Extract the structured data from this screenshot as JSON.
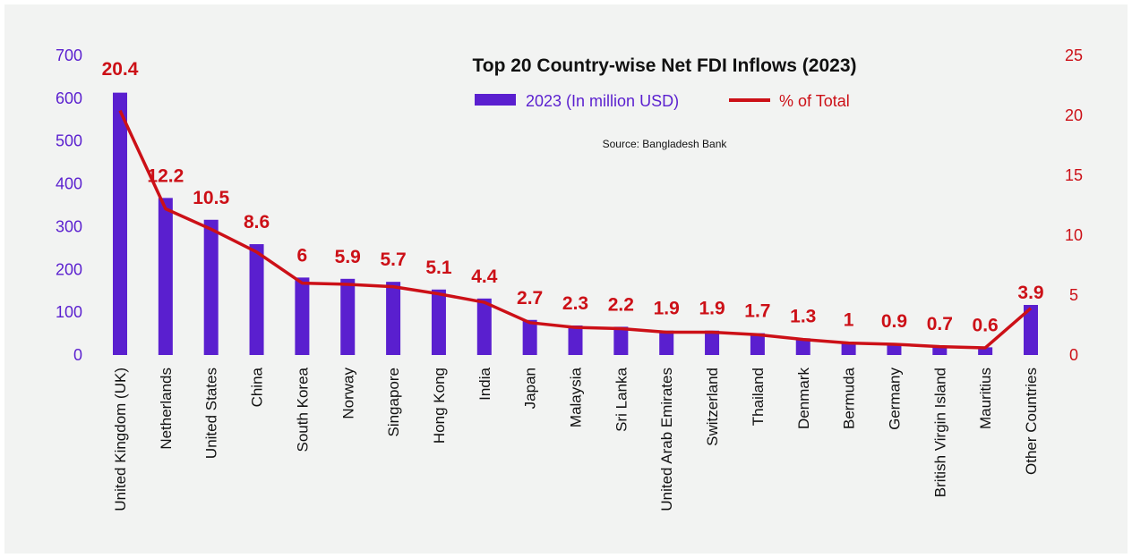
{
  "colors": {
    "bar": "#5a1fcf",
    "line": "#cc1017",
    "background": "#f2f3f2"
  },
  "chart_data": {
    "type": "bar",
    "title": "Top 20 Country-wise Net FDI Inflows (2023)",
    "source": "Source: Bangladesh Bank",
    "categories": [
      "United Kingdom (UK)",
      "Netherlands",
      "United States",
      "China",
      "South Korea",
      "Norway",
      "Singapore",
      "Hong Kong",
      "India",
      "Japan",
      "Malaysia",
      "Sri Lanka",
      "United Arab Emirates",
      "Switzerland",
      "Thailand",
      "Denmark",
      "Bermuda",
      "Germany",
      "British Virgin Island",
      "Mauritius",
      "Other Countries"
    ],
    "series": [
      {
        "name": "2023 (In million USD)",
        "type": "bar",
        "axis": "left",
        "values": [
          613,
          367,
          316,
          259,
          181,
          178,
          171,
          153,
          132,
          82,
          69,
          66,
          57,
          57,
          51,
          39,
          30,
          27,
          21,
          18,
          117
        ]
      },
      {
        "name": "% of Total",
        "type": "line",
        "axis": "right",
        "values": [
          20.4,
          12.2,
          10.5,
          8.6,
          6,
          5.9,
          5.7,
          5.1,
          4.4,
          2.7,
          2.3,
          2.2,
          1.9,
          1.9,
          1.7,
          1.3,
          1,
          0.9,
          0.7,
          0.6,
          3.9
        ],
        "labels": [
          "20.4",
          "12.2",
          "10.5",
          "8.6",
          "6",
          "5.9",
          "5.7",
          "5.1",
          "4.4",
          "2.7",
          "2.3",
          "2.2",
          "1.9",
          "1.9",
          "1.7",
          "1.3",
          "1",
          "0.9",
          "0.7",
          "0.6",
          "3.9"
        ]
      }
    ],
    "y_left": {
      "min": 0,
      "max": 700,
      "ticks": [
        "0",
        "100",
        "200",
        "300",
        "400",
        "500",
        "600",
        "700"
      ]
    },
    "y_right": {
      "min": 0,
      "max": 25,
      "ticks": [
        "0",
        "5",
        "10",
        "15",
        "20",
        "25"
      ]
    },
    "grid": false,
    "legend_position": "top-center"
  }
}
